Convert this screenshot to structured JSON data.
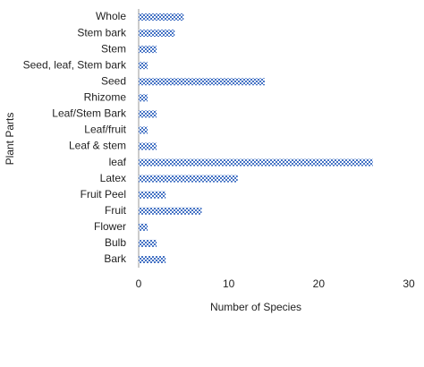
{
  "chart_data": {
    "type": "hbar",
    "categories": [
      "Whole",
      "Stem bark",
      "Stem",
      "Seed, leaf, Stem bark",
      "Seed",
      "Rhizome",
      "Leaf/Stem Bark",
      "Leaf/fruit",
      "Leaf & stem",
      "leaf",
      "Latex",
      "Fruit Peel",
      "Fruit",
      "Flower",
      "Bulb",
      "Bark"
    ],
    "values": [
      5,
      4,
      2,
      1,
      14,
      1,
      2,
      1,
      2,
      26,
      11,
      3,
      7,
      1,
      2,
      3
    ],
    "color": "#4472c4",
    "xlabel": "Number of Species",
    "ylabel": "Plant Parts",
    "xlim": [
      0,
      30
    ],
    "xticks": [
      0,
      10,
      20,
      30
    ],
    "grid": false
  }
}
